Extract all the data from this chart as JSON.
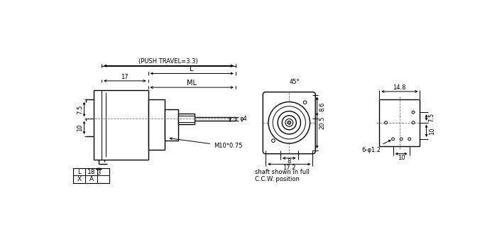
{
  "bg_color": "#ffffff",
  "line_color": "#000000",
  "annotations": {
    "push_travel": "(PUSH TRAVEL=3.3)",
    "L_label": "L",
    "dim_17": "17",
    "ML_label": "ML",
    "dim_7_5": "7.5",
    "dim_10_left": "10",
    "dim_3": "3",
    "phi4": "φ4",
    "M10": "M10*0.75",
    "dim_45": "45°",
    "dim_8_6": "8.6",
    "dim_20_5": "20.5",
    "dim_8": "8",
    "dim_17_2": "17.2",
    "dim_14_8": "14.8",
    "dim_7_5b": "7.5",
    "dim_10b": "10",
    "dim_10c": "10",
    "phi_label": "6-φ1.2",
    "shaft_note1": "shaft shown in full",
    "shaft_note2": "C.C.W. position",
    "table_X": "X",
    "table_A": "A",
    "table_L": "L",
    "table_18": "18"
  }
}
